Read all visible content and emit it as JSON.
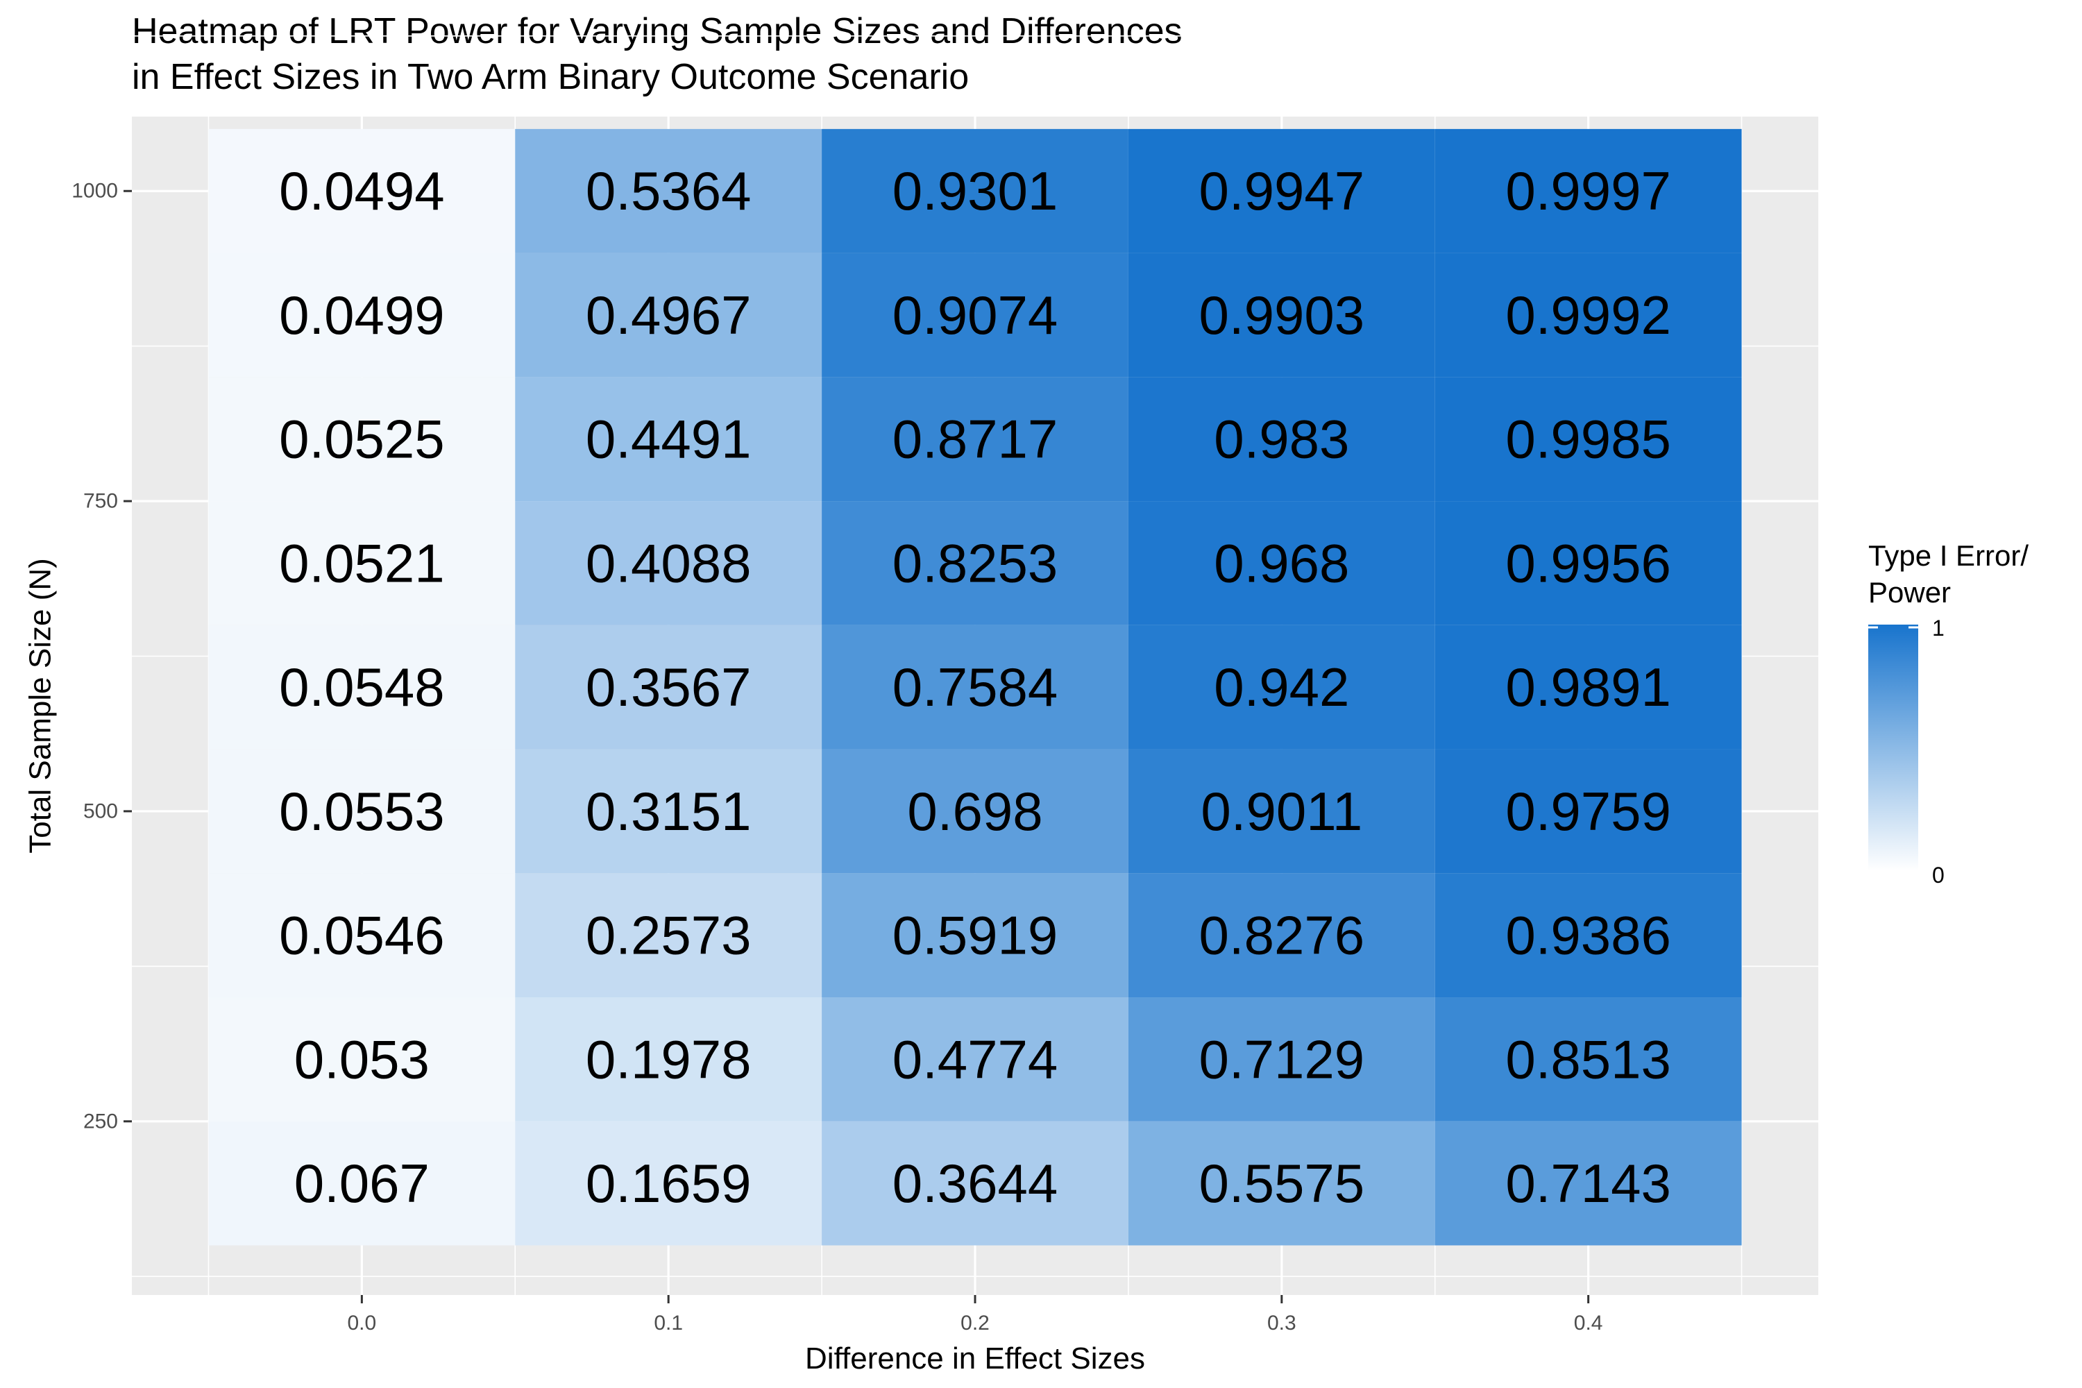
{
  "chart_data": {
    "type": "heatmap",
    "title_lines": [
      "Heatmap of LRT Power for Varying Sample Sizes and Differences",
      "in Effect Sizes in Two Arm Binary Outcome Scenario"
    ],
    "xlabel": "Difference in Effect Sizes",
    "ylabel": "Total Sample Size (N)",
    "x": [
      0.0,
      0.1,
      0.2,
      0.3,
      0.4
    ],
    "x_tick_labels": [
      "0.0",
      "0.1",
      "0.2",
      "0.3",
      "0.4"
    ],
    "y": [
      200,
      300,
      400,
      500,
      600,
      700,
      800,
      900,
      1000
    ],
    "y_ticks": [
      250,
      500,
      750,
      1000
    ],
    "y_tick_labels": [
      "250",
      "500",
      "750",
      "1000"
    ],
    "xlim": [
      -0.075,
      0.475
    ],
    "ylim": [
      110,
      1060
    ],
    "grid": true,
    "values": [
      [
        0.067,
        0.1659,
        0.3644,
        0.5575,
        0.7143
      ],
      [
        0.053,
        0.1978,
        0.4774,
        0.7129,
        0.8513
      ],
      [
        0.0546,
        0.2573,
        0.5919,
        0.8276,
        0.9386
      ],
      [
        0.0553,
        0.3151,
        0.698,
        0.9011,
        0.9759
      ],
      [
        0.0548,
        0.3567,
        0.7584,
        0.942,
        0.9891
      ],
      [
        0.0521,
        0.4088,
        0.8253,
        0.968,
        0.9956
      ],
      [
        0.0525,
        0.4491,
        0.8717,
        0.983,
        0.9985
      ],
      [
        0.0499,
        0.4967,
        0.9074,
        0.9903,
        0.9992
      ],
      [
        0.0494,
        0.5364,
        0.9301,
        0.9947,
        0.9997
      ]
    ],
    "value_labels": [
      [
        "0.067",
        "0.1659",
        "0.3644",
        "0.5575",
        "0.7143"
      ],
      [
        "0.053",
        "0.1978",
        "0.4774",
        "0.7129",
        "0.8513"
      ],
      [
        "0.0546",
        "0.2573",
        "0.5919",
        "0.8276",
        "0.9386"
      ],
      [
        "0.0553",
        "0.3151",
        "0.698",
        "0.9011",
        "0.9759"
      ],
      [
        "0.0548",
        "0.3567",
        "0.7584",
        "0.942",
        "0.9891"
      ],
      [
        "0.0521",
        "0.4088",
        "0.8253",
        "0.968",
        "0.9956"
      ],
      [
        "0.0525",
        "0.4491",
        "0.8717",
        "0.983",
        "0.9985"
      ],
      [
        "0.0499",
        "0.4967",
        "0.9074",
        "0.9903",
        "0.9992"
      ],
      [
        "0.0494",
        "0.5364",
        "0.9301",
        "0.9947",
        "0.9997"
      ]
    ],
    "legend": {
      "title_lines": [
        "Type I Error/",
        "Power"
      ],
      "placement": "right",
      "min_label": "0",
      "max_label": "1",
      "min": 0,
      "max": 1,
      "color_low": "#ffffff",
      "color_high": "#1874cd"
    },
    "colors": {
      "panel_background": "#ebebeb",
      "grid_major": "#ffffff"
    }
  }
}
